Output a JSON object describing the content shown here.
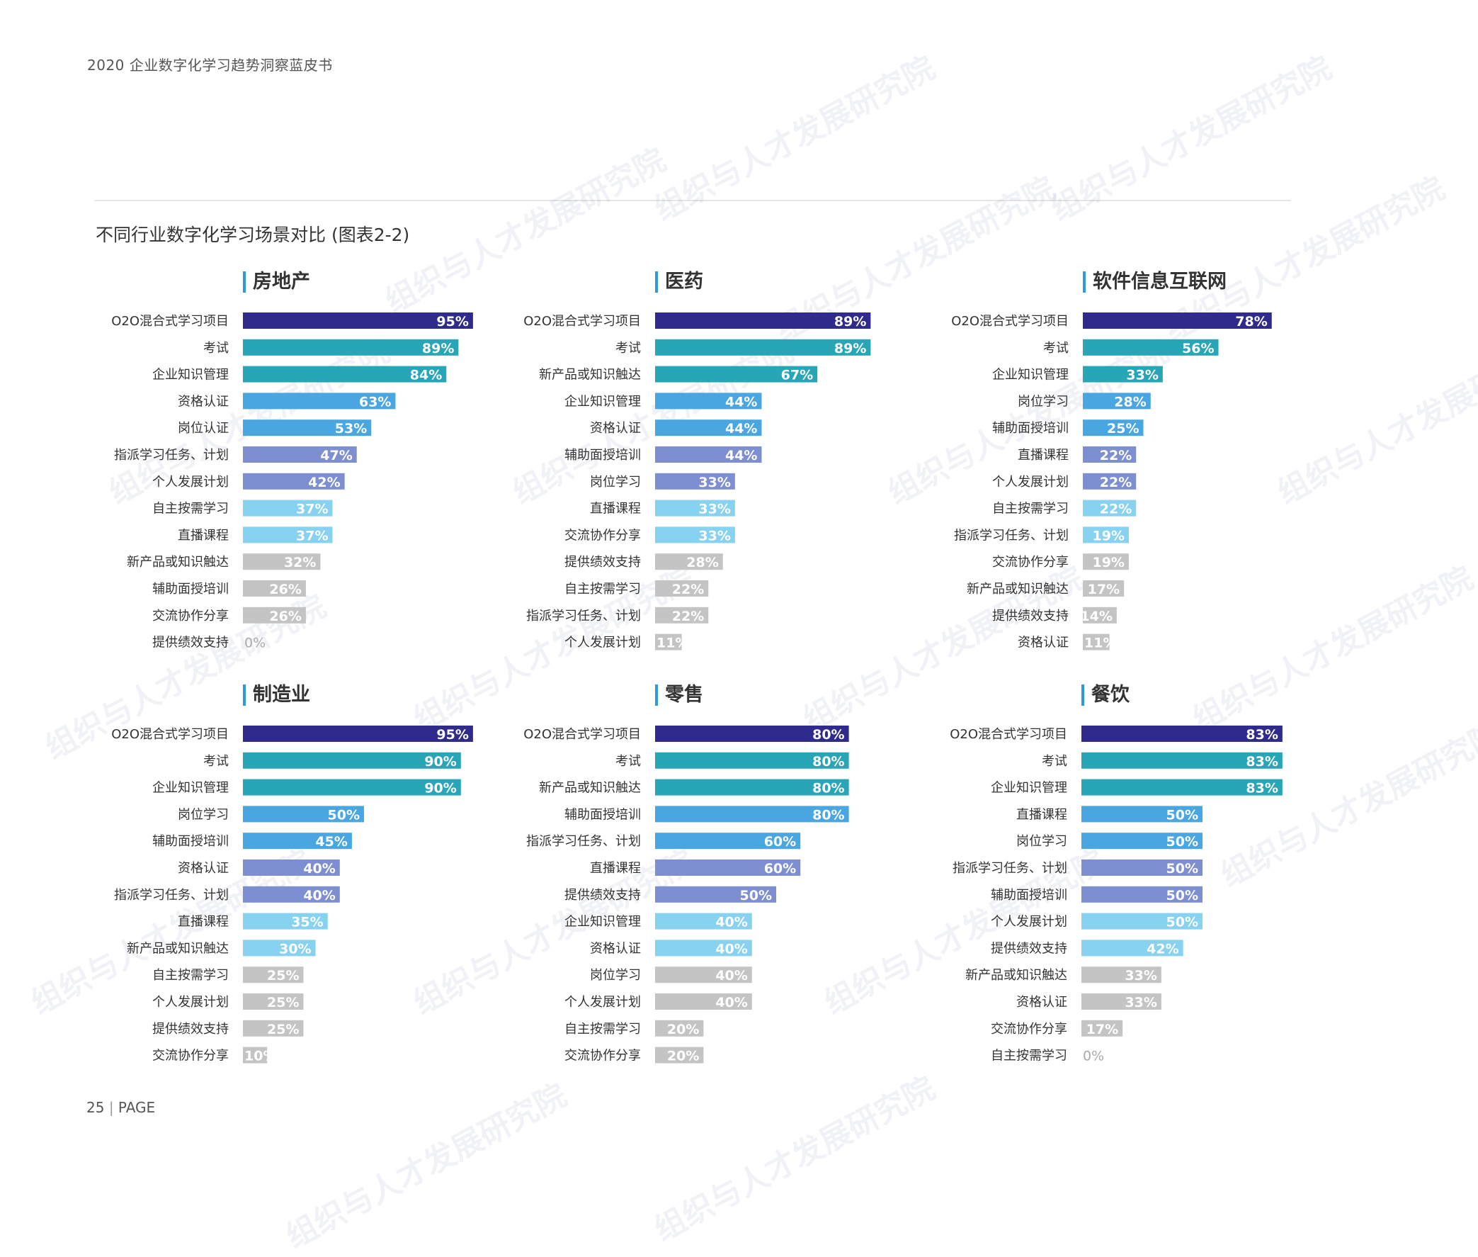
{
  "header": {
    "doc_title": "2020 企业数字化学习趋势洞察蓝皮书"
  },
  "figure_title": "不同行业数字化学习场景对比 (图表2-2)",
  "footer": {
    "page_number": "25",
    "page_label": "PAGE"
  },
  "watermark_text": "组织与人才发展研究院",
  "colors": {
    "navy": "#2e2b8c",
    "teal": "#29a5b8",
    "blue": "#4aa6e0",
    "lavender": "#7d8fd0",
    "sky": "#86d2f0",
    "gray": "#c4c4c4"
  },
  "chart_data": [
    {
      "type": "bar",
      "title": "房地产",
      "categories": [
        "O2O混合式学习项目",
        "考试",
        "企业知识管理",
        "资格认证",
        "岗位认证",
        "指派学习任务、计划",
        "个人发展计划",
        "自主按需学习",
        "直播课程",
        "新产品或知识触达",
        "辅助面授培训",
        "交流协作分享",
        "提供绩效支持"
      ],
      "values": [
        95,
        89,
        84,
        63,
        53,
        47,
        42,
        37,
        37,
        32,
        26,
        26,
        0
      ],
      "colors": [
        "navy",
        "teal",
        "teal",
        "blue",
        "blue",
        "lavender",
        "lavender",
        "sky",
        "sky",
        "gray",
        "gray",
        "gray",
        "gray"
      ],
      "labels": [
        "95%",
        "89%",
        "84%",
        "63%",
        "53%",
        "47%",
        "42%",
        "37%",
        "37%",
        "32%",
        "26%",
        "26%",
        "0%"
      ]
    },
    {
      "type": "bar",
      "title": "医药",
      "categories": [
        "O2O混合式学习项目",
        "考试",
        "新产品或知识触达",
        "企业知识管理",
        "资格认证",
        "辅助面授培训",
        "岗位学习",
        "直播课程",
        "交流协作分享",
        "提供绩效支持",
        "自主按需学习",
        "指派学习任务、计划",
        "个人发展计划"
      ],
      "values": [
        89,
        89,
        67,
        44,
        44,
        44,
        33,
        33,
        33,
        28,
        22,
        22,
        11
      ],
      "colors": [
        "navy",
        "teal",
        "teal",
        "blue",
        "blue",
        "lavender",
        "lavender",
        "sky",
        "sky",
        "gray",
        "gray",
        "gray",
        "gray"
      ],
      "labels": [
        "89%",
        "89%",
        "67%",
        "44%",
        "44%",
        "44%",
        "33%",
        "33%",
        "33%",
        "28%",
        "22%",
        "22%",
        "11%"
      ]
    },
    {
      "type": "bar",
      "title": "软件信息互联网",
      "categories": [
        "O2O混合式学习项目",
        "考试",
        "企业知识管理",
        "岗位学习",
        "辅助面授培训",
        "直播课程",
        "个人发展计划",
        "自主按需学习",
        "指派学习任务、计划",
        "交流协作分享",
        "新产品或知识触达",
        "提供绩效支持",
        "资格认证"
      ],
      "values": [
        78,
        56,
        33,
        28,
        25,
        22,
        22,
        22,
        19,
        19,
        17,
        14,
        11
      ],
      "colors": [
        "navy",
        "teal",
        "teal",
        "blue",
        "blue",
        "lavender",
        "lavender",
        "sky",
        "sky",
        "gray",
        "gray",
        "gray",
        "gray"
      ],
      "labels": [
        "78%",
        "56%",
        "33%",
        "28%",
        "25%",
        "22%",
        "22%",
        "22%",
        "19%",
        "19%",
        "17%",
        "14%",
        "11%"
      ]
    },
    {
      "type": "bar",
      "title": "制造业",
      "categories": [
        "O2O混合式学习项目",
        "考试",
        "企业知识管理",
        "岗位学习",
        "辅助面授培训",
        "资格认证",
        "指派学习任务、计划",
        "直播课程",
        "新产品或知识触达",
        "自主按需学习",
        "个人发展计划",
        "提供绩效支持",
        "交流协作分享"
      ],
      "values": [
        95,
        90,
        90,
        50,
        45,
        40,
        40,
        35,
        30,
        25,
        25,
        25,
        10
      ],
      "colors": [
        "navy",
        "teal",
        "teal",
        "blue",
        "blue",
        "lavender",
        "lavender",
        "sky",
        "sky",
        "gray",
        "gray",
        "gray",
        "gray"
      ],
      "labels": [
        "95%",
        "90%",
        "90%",
        "50%",
        "45%",
        "40%",
        "40%",
        "35%",
        "30%",
        "25%",
        "25%",
        "25%",
        "10%"
      ]
    },
    {
      "type": "bar",
      "title": "零售",
      "categories": [
        "O2O混合式学习项目",
        "考试",
        "新产品或知识触达",
        "辅助面授培训",
        "指派学习任务、计划",
        "直播课程",
        "提供绩效支持",
        "企业知识管理",
        "资格认证",
        "岗位学习",
        "个人发展计划",
        "自主按需学习",
        "交流协作分享"
      ],
      "values": [
        80,
        80,
        80,
        80,
        60,
        60,
        50,
        40,
        40,
        40,
        40,
        20,
        20
      ],
      "colors": [
        "navy",
        "teal",
        "teal",
        "blue",
        "blue",
        "lavender",
        "lavender",
        "sky",
        "sky",
        "gray",
        "gray",
        "gray",
        "gray"
      ],
      "labels": [
        "80%",
        "80%",
        "80%",
        "80%",
        "60%",
        "60%",
        "50%",
        "40%",
        "40%",
        "40%",
        "40%",
        "20%",
        "20%"
      ]
    },
    {
      "type": "bar",
      "title": "餐饮",
      "categories": [
        "O2O混合式学习项目",
        "考试",
        "企业知识管理",
        "直播课程",
        "岗位学习",
        "指派学习任务、计划",
        "辅助面授培训",
        "个人发展计划",
        "提供绩效支持",
        "新产品或知识触达",
        "资格认证",
        "交流协作分享",
        "自主按需学习"
      ],
      "values": [
        83,
        83,
        83,
        50,
        50,
        50,
        50,
        50,
        42,
        33,
        33,
        17,
        0
      ],
      "colors": [
        "navy",
        "teal",
        "teal",
        "blue",
        "blue",
        "lavender",
        "lavender",
        "sky",
        "sky",
        "gray",
        "gray",
        "gray",
        "gray"
      ],
      "labels": [
        "83%",
        "83%",
        "83%",
        "50%",
        "50%",
        "50%",
        "50%",
        "50%",
        "42%",
        "33%",
        "33%",
        "17%",
        "0%"
      ]
    }
  ]
}
